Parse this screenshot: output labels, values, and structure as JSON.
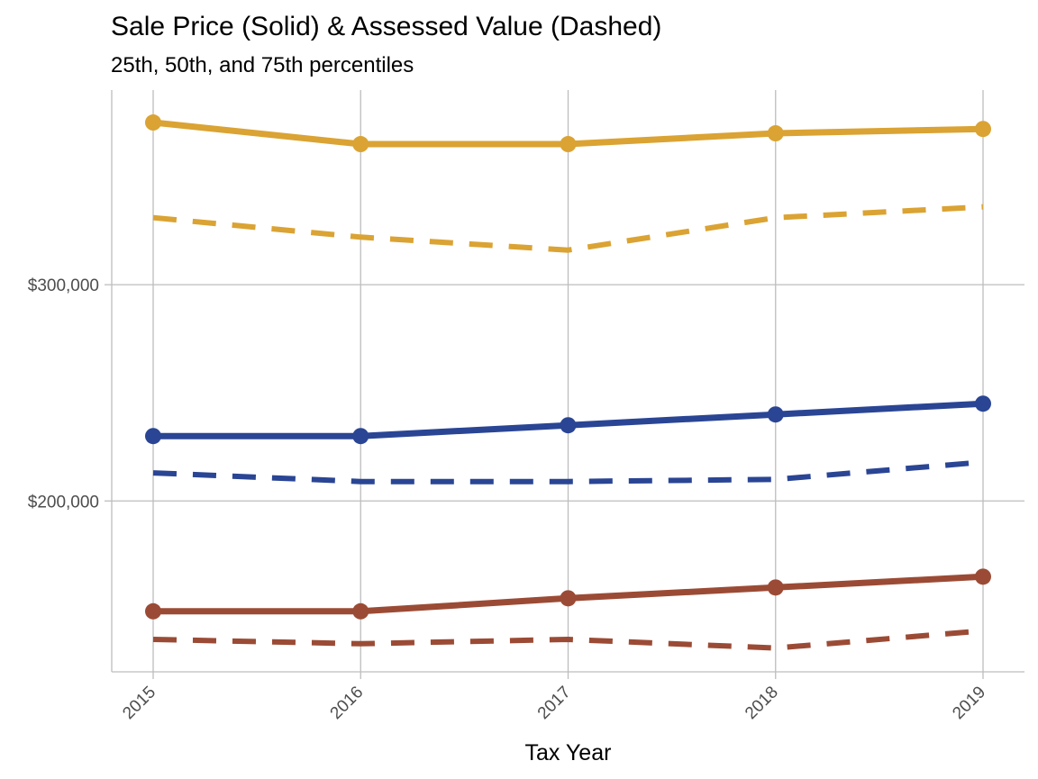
{
  "chart_data": {
    "type": "line",
    "title": "Sale Price (Solid) & Assessed Value (Dashed)",
    "subtitle": "25th, 50th, and 75th percentiles",
    "xlabel": "Tax Year",
    "ylabel": "",
    "x": [
      2015,
      2016,
      2017,
      2018,
      2019
    ],
    "x_tick_labels": [
      "2015",
      "2016",
      "2017",
      "2018",
      "2019"
    ],
    "y_ticks": [
      200000,
      300000
    ],
    "y_tick_labels": [
      "$200,000",
      "$300,000"
    ],
    "ylim": [
      121000,
      390000
    ],
    "grid": true,
    "legend": "none",
    "series": [
      {
        "percentile": "75th",
        "measure": "sale_price",
        "style": "solid",
        "markers": true,
        "color": "#DAA333",
        "values": [
          375000,
          365000,
          365000,
          370000,
          372000
        ]
      },
      {
        "percentile": "75th",
        "measure": "assessed_value",
        "style": "dashed",
        "markers": false,
        "color": "#DAA333",
        "values": [
          331000,
          322000,
          316000,
          331000,
          336000
        ]
      },
      {
        "percentile": "50th",
        "measure": "sale_price",
        "style": "solid",
        "markers": true,
        "color": "#2A4594",
        "values": [
          230000,
          230000,
          235000,
          240000,
          245000
        ]
      },
      {
        "percentile": "50th",
        "measure": "assessed_value",
        "style": "dashed",
        "markers": false,
        "color": "#2A4594",
        "values": [
          213000,
          209000,
          209000,
          210000,
          218000
        ]
      },
      {
        "percentile": "25th",
        "measure": "sale_price",
        "style": "solid",
        "markers": true,
        "color": "#9B4B35",
        "values": [
          149000,
          149000,
          155000,
          160000,
          165000
        ]
      },
      {
        "percentile": "25th",
        "measure": "assessed_value",
        "style": "dashed",
        "markers": false,
        "color": "#9B4B35",
        "values": [
          136000,
          134000,
          136000,
          132000,
          140000
        ]
      }
    ]
  }
}
